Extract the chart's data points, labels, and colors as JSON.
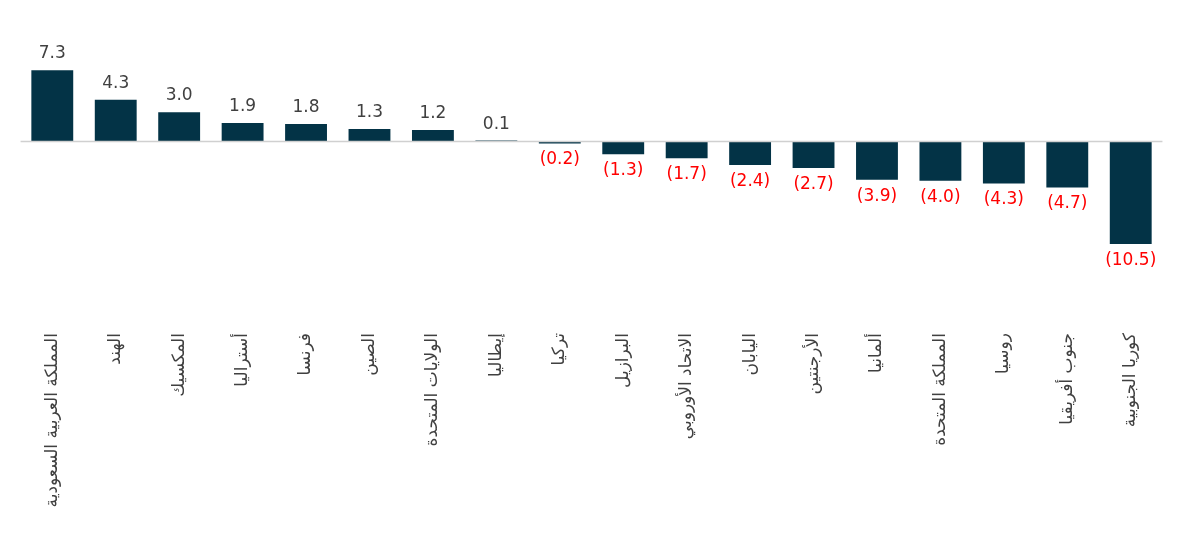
{
  "chart_data": {
    "type": "bar",
    "categories": [
      "المملكة العربية السعودية",
      "الهند",
      "المكسيك",
      "أستراليا",
      "فرنسا",
      "الصين",
      "الولايات المتحدة",
      "إيطاليا",
      "تركيا",
      "البرازيل",
      "الاتحاد الأوروبي",
      "اليابان",
      "الأرجنتين",
      "ألمانيا",
      "المملكة المتحدة",
      "روسيا",
      "جنوب أفريقيا",
      "كوريا الجنوبية"
    ],
    "values": [
      7.3,
      4.3,
      3.0,
      1.9,
      1.8,
      1.3,
      1.2,
      0.1,
      -0.2,
      -1.3,
      -1.7,
      -2.4,
      -2.7,
      -3.9,
      -4.0,
      -4.3,
      -4.7,
      -10.5
    ],
    "value_labels": [
      "7.3",
      "4.3",
      "3.0",
      "1.9",
      "1.8",
      "1.3",
      "1.2",
      "0.1",
      "(0.2)",
      "(1.3)",
      "(1.7)",
      "(2.4)",
      "(2.7)",
      "(3.9)",
      "(4.0)",
      "(4.3)",
      "(4.7)",
      "(10.5)"
    ],
    "color": "#033346",
    "grid": false,
    "legend": false,
    "tick_labels": "x"
  }
}
